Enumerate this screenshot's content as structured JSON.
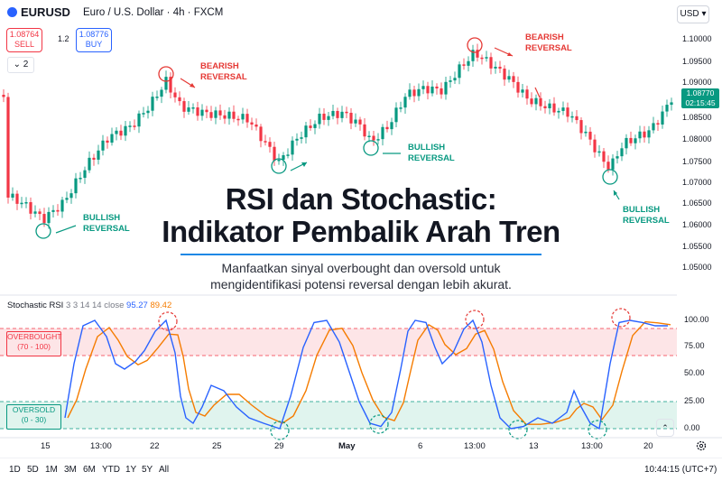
{
  "header": {
    "symbol": "EURUSD",
    "description": "Euro / U.S. Dollar · 4h · FXCM",
    "currency": "USD",
    "sell_price": "1.08764",
    "sell_label": "SELL",
    "spread": "1.2",
    "buy_price": "1.08776",
    "buy_label": "BUY",
    "indicator_count": "2"
  },
  "price_axis": [
    "1.10000",
    "1.09500",
    "1.09000",
    "1.08500",
    "1.08000",
    "1.07500",
    "1.07000",
    "1.06500",
    "1.06000",
    "1.05500",
    "1.05000"
  ],
  "last_price": {
    "price": "1.08770",
    "countdown": "02:15:45"
  },
  "annotations": [
    {
      "text1": "BEARISH",
      "text2": "REVERSAL",
      "kind": "bearish"
    },
    {
      "text1": "BULLISH",
      "text2": "REVERSAL",
      "kind": "bullish"
    },
    {
      "text1": "BULLISH",
      "text2": "REVERSAL",
      "kind": "bullish"
    },
    {
      "text1": "BEARISH",
      "text2": "REVERSAL",
      "kind": "bearish"
    },
    {
      "text1": "BULLISH",
      "text2": "REVERSAL",
      "kind": "bullish"
    }
  ],
  "title": {
    "line1": "RSI dan Stochastic:",
    "line2": "Indikator Pembalik Arah Tren",
    "desc1": "Manfaatkan sinyal overbought dan oversold untuk",
    "desc2": "mengidentifikasi potensi reversal dengan lebih akurat."
  },
  "stoch": {
    "name": "Stochastic RSI",
    "params": "3 3 14 14 close",
    "k_value": "95.27",
    "d_value": "89.42",
    "axis": [
      "100.00",
      "75.00",
      "50.00",
      "25.00",
      "0.00"
    ],
    "overbought_1": "OVERBOUGHT",
    "overbought_2": "(70 - 100)",
    "oversold_1": "OVERSOLD",
    "oversold_2": "(0 - 30)",
    "k_color": "#2962ff",
    "d_color": "#f57c00"
  },
  "time_axis": [
    "15",
    "13:00",
    "22",
    "25",
    "29",
    "May",
    "6",
    "13:00",
    "13",
    "13:00",
    "20"
  ],
  "bottom_bar": {
    "timeframes": [
      "1D",
      "5D",
      "1M",
      "3M",
      "6M",
      "YTD",
      "1Y",
      "5Y",
      "All"
    ],
    "clock": "10:44:15 (UTC+7)"
  },
  "colors": {
    "up": "#089981",
    "down": "#f23645",
    "accent": "#2962ff"
  },
  "icons": [
    "calendar-range-icon",
    "gear-icon",
    "chevron-up-icon",
    "chevron-down-icon"
  ]
}
